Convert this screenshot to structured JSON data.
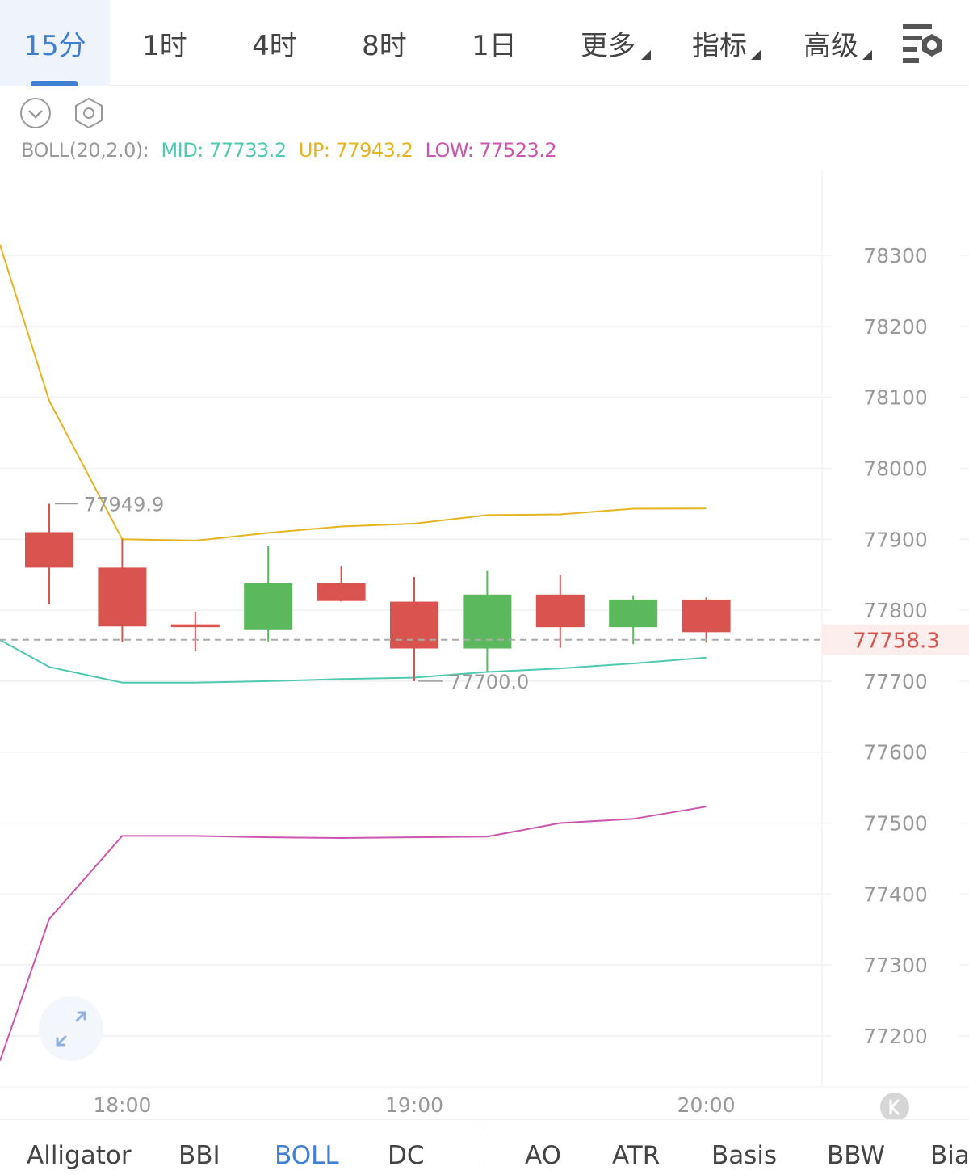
{
  "top_tabs": [
    {
      "label": "15分",
      "active": true
    },
    {
      "label": "1时",
      "active": false
    },
    {
      "label": "4时",
      "active": false
    },
    {
      "label": "8时",
      "active": false
    },
    {
      "label": "1日",
      "active": false
    },
    {
      "label": "更多",
      "active": false,
      "dropdown": true
    },
    {
      "label": "指标",
      "active": false,
      "dropdown": true
    },
    {
      "label": "高级",
      "active": false,
      "dropdown": true
    }
  ],
  "indicator_header": {
    "name": "BOLL(20,2.0):",
    "mid": "MID: 77733.2",
    "up": "UP: 77943.2",
    "low": "LOW: 77523.2"
  },
  "colors": {
    "accent": "#3f7fd4",
    "up_candle": "#5cb85c",
    "down_candle": "#d9534f",
    "mid": "#4fc9b0",
    "upper": "#e6b422",
    "lower": "#cc55b0",
    "current_price_bg": "#fdeeee",
    "current_price_text": "#d9534f"
  },
  "chart_data": {
    "type": "candlestick",
    "y_ticks": [
      "78300",
      "78200",
      "78100",
      "78000",
      "77900",
      "77800",
      "77700",
      "77600",
      "77500",
      "77400",
      "77300",
      "77200"
    ],
    "x_ticks": [
      "18:00",
      "19:00",
      "20:00"
    ],
    "current_price": "77758.3",
    "high_marker": "77949.9",
    "low_marker": "77700.0",
    "candles": [
      {
        "open": 77910,
        "high": 77949.9,
        "low": 77808,
        "close": 77860
      },
      {
        "open": 77860,
        "high": 77900,
        "low": 77755,
        "close": 77777
      },
      {
        "open": 77780,
        "high": 77798,
        "low": 77742,
        "close": 77776
      },
      {
        "open": 77773,
        "high": 77890,
        "low": 77756,
        "close": 77838
      },
      {
        "open": 77838,
        "high": 77862,
        "low": 77812,
        "close": 77813
      },
      {
        "open": 77812,
        "high": 77847,
        "low": 77700.0,
        "close": 77746
      },
      {
        "open": 77746,
        "high": 77856,
        "low": 77713,
        "close": 77822
      },
      {
        "open": 77822,
        "high": 77850,
        "low": 77747,
        "close": 77776
      },
      {
        "open": 77776,
        "high": 77821,
        "low": 77752,
        "close": 77815
      },
      {
        "open": 77815,
        "high": 77818,
        "low": 77754,
        "close": 77769
      }
    ],
    "boll_upper": [
      78315,
      78095,
      77900,
      77898,
      77909,
      77918,
      77922,
      77934,
      77935,
      77943,
      77943.2
    ],
    "boll_mid": [
      77758,
      77720,
      77698,
      77698,
      77700,
      77703,
      77705,
      77713,
      77718,
      77725,
      77733.2
    ],
    "boll_lower": [
      77165,
      77365,
      77482,
      77482,
      77480,
      77479,
      77480,
      77481,
      77500,
      77506,
      77523.2
    ]
  },
  "bottom_indicators": [
    {
      "label": "Alligator",
      "active": false
    },
    {
      "label": "BBI",
      "active": false
    },
    {
      "label": "BOLL",
      "active": true
    },
    {
      "label": "DC",
      "active": false
    },
    {
      "label": "AO",
      "active": false
    },
    {
      "label": "ATR",
      "active": false
    },
    {
      "label": "Basis",
      "active": false
    },
    {
      "label": "BBW",
      "active": false
    },
    {
      "label": "Bias",
      "active": false
    }
  ]
}
